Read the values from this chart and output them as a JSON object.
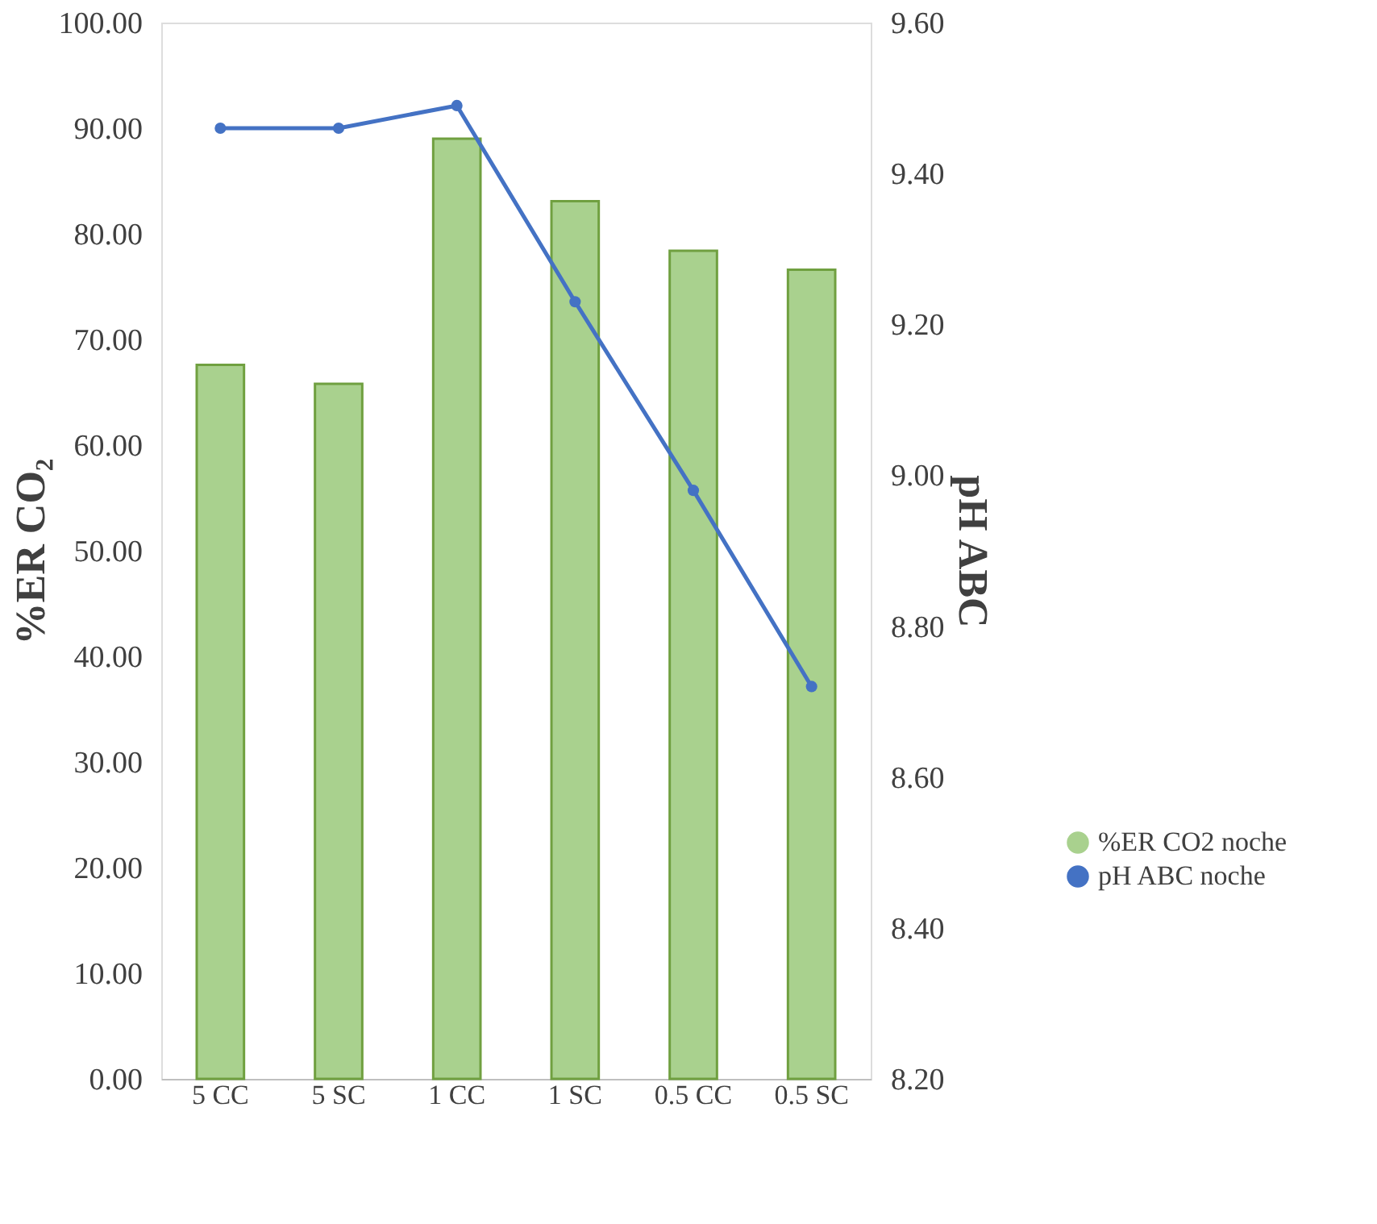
{
  "chart_data": {
    "type": "bar",
    "categories": [
      "5 CC",
      "5 SC",
      "1 CC",
      "1 SC",
      "0.5 CC",
      "0.5 SC"
    ],
    "ylabel": "%ER CO₂",
    "y2label": "pH ABC",
    "series": [
      {
        "name": "%ER CO2 noche",
        "color": "#a9d18e",
        "values": [
          67.6,
          65.8,
          89.0,
          83.1,
          78.4,
          76.6
        ]
      },
      {
        "name": "pH ABC noche",
        "type": "line",
        "axis": "y2",
        "color": "#4472c4",
        "values": [
          9.46,
          9.46,
          9.49,
          9.23,
          8.98,
          8.72
        ]
      }
    ],
    "ylim": [
      0,
      100
    ],
    "yticks": [
      {
        "value": 0,
        "label": "0.00"
      },
      {
        "value": 10,
        "label": "10.00"
      },
      {
        "value": 20,
        "label": "20.00"
      },
      {
        "value": 30,
        "label": "30.00"
      },
      {
        "value": 40,
        "label": "40.00"
      },
      {
        "value": 50,
        "label": "50.00"
      },
      {
        "value": 60,
        "label": "60.00"
      },
      {
        "value": 70,
        "label": "70.00"
      },
      {
        "value": 80,
        "label": "80.00"
      },
      {
        "value": 90,
        "label": "90.00"
      },
      {
        "value": 100,
        "label": "100.00"
      }
    ],
    "y2lim": [
      8.2,
      9.6
    ],
    "y2ticks": [
      {
        "value": 8.2,
        "label": "8.20"
      },
      {
        "value": 8.4,
        "label": "8.40"
      },
      {
        "value": 8.6,
        "label": "8.60"
      },
      {
        "value": 8.8,
        "label": "8.80"
      },
      {
        "value": 9.0,
        "label": "9.00"
      },
      {
        "value": 9.2,
        "label": "9.20"
      },
      {
        "value": 9.4,
        "label": "9.40"
      },
      {
        "value": 9.6,
        "label": "9.60"
      }
    ],
    "marker": "circle",
    "line_style": "solid",
    "grid": false,
    "legend": "right"
  }
}
